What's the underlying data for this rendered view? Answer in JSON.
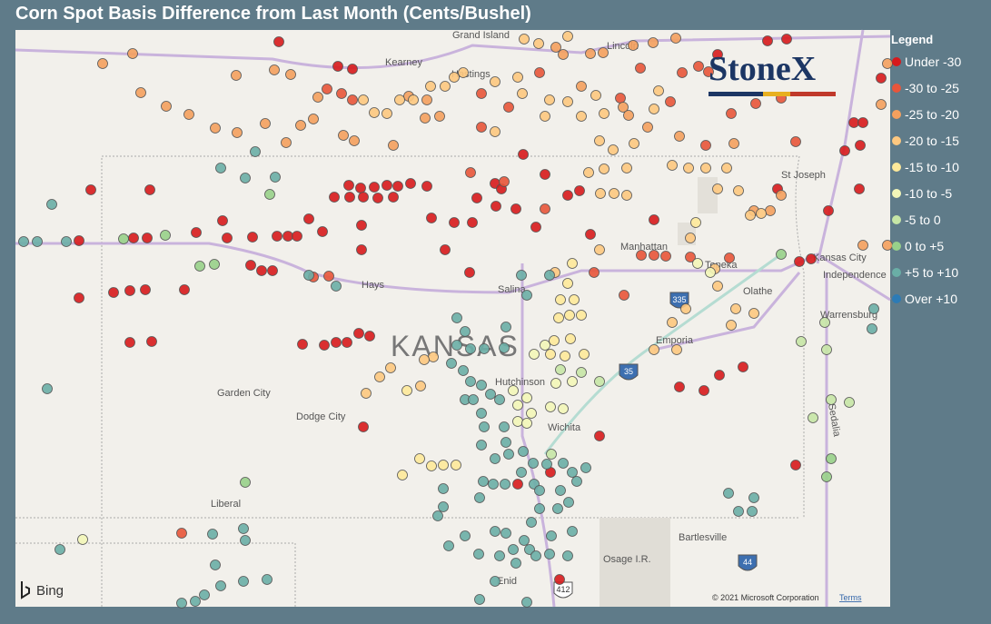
{
  "header": {
    "title": "Corn Spot Basis Difference from Last Month (Cents/Bushel)"
  },
  "legend": {
    "title": "Legend",
    "items": [
      {
        "label": "Under -30",
        "color": "#d7191c"
      },
      {
        "label": "-30 to -25",
        "color": "#e8553a"
      },
      {
        "label": "-25 to -20",
        "color": "#f4a05e"
      },
      {
        "label": "-20 to -15",
        "color": "#fdc880"
      },
      {
        "label": "-15 to -10",
        "color": "#fee99a"
      },
      {
        "label": "-10 to -5",
        "color": "#f3f6b8"
      },
      {
        "label": "-5 to 0",
        "color": "#c6e6a6"
      },
      {
        "label": "0 to +5",
        "color": "#98d08a"
      },
      {
        "label": "+5 to +10",
        "color": "#6aaea6"
      },
      {
        "label": "Over +10",
        "color": "#2c7bb6"
      }
    ]
  },
  "map": {
    "state_label": "KANSAS",
    "cities": [
      "Grand Island",
      "Kearney",
      "Hastings",
      "Lincoln",
      "St Joseph",
      "Manhattan",
      "Topeka",
      "Kansas City",
      "Independence",
      "Olathe",
      "Warrensburg",
      "Salina",
      "Hays",
      "Hutchinson",
      "Emporia",
      "Wichita",
      "Garden City",
      "Dodge City",
      "Liberal",
      "Bartlesville",
      "Osage I.R.",
      "Enid",
      "Sedalia"
    ],
    "highways": [
      "335",
      "35",
      "44",
      "412"
    ],
    "logo": "StoneX",
    "provider": "Bing",
    "copyright": "© 2021 Microsoft Corporation",
    "terms": "Terms"
  }
}
